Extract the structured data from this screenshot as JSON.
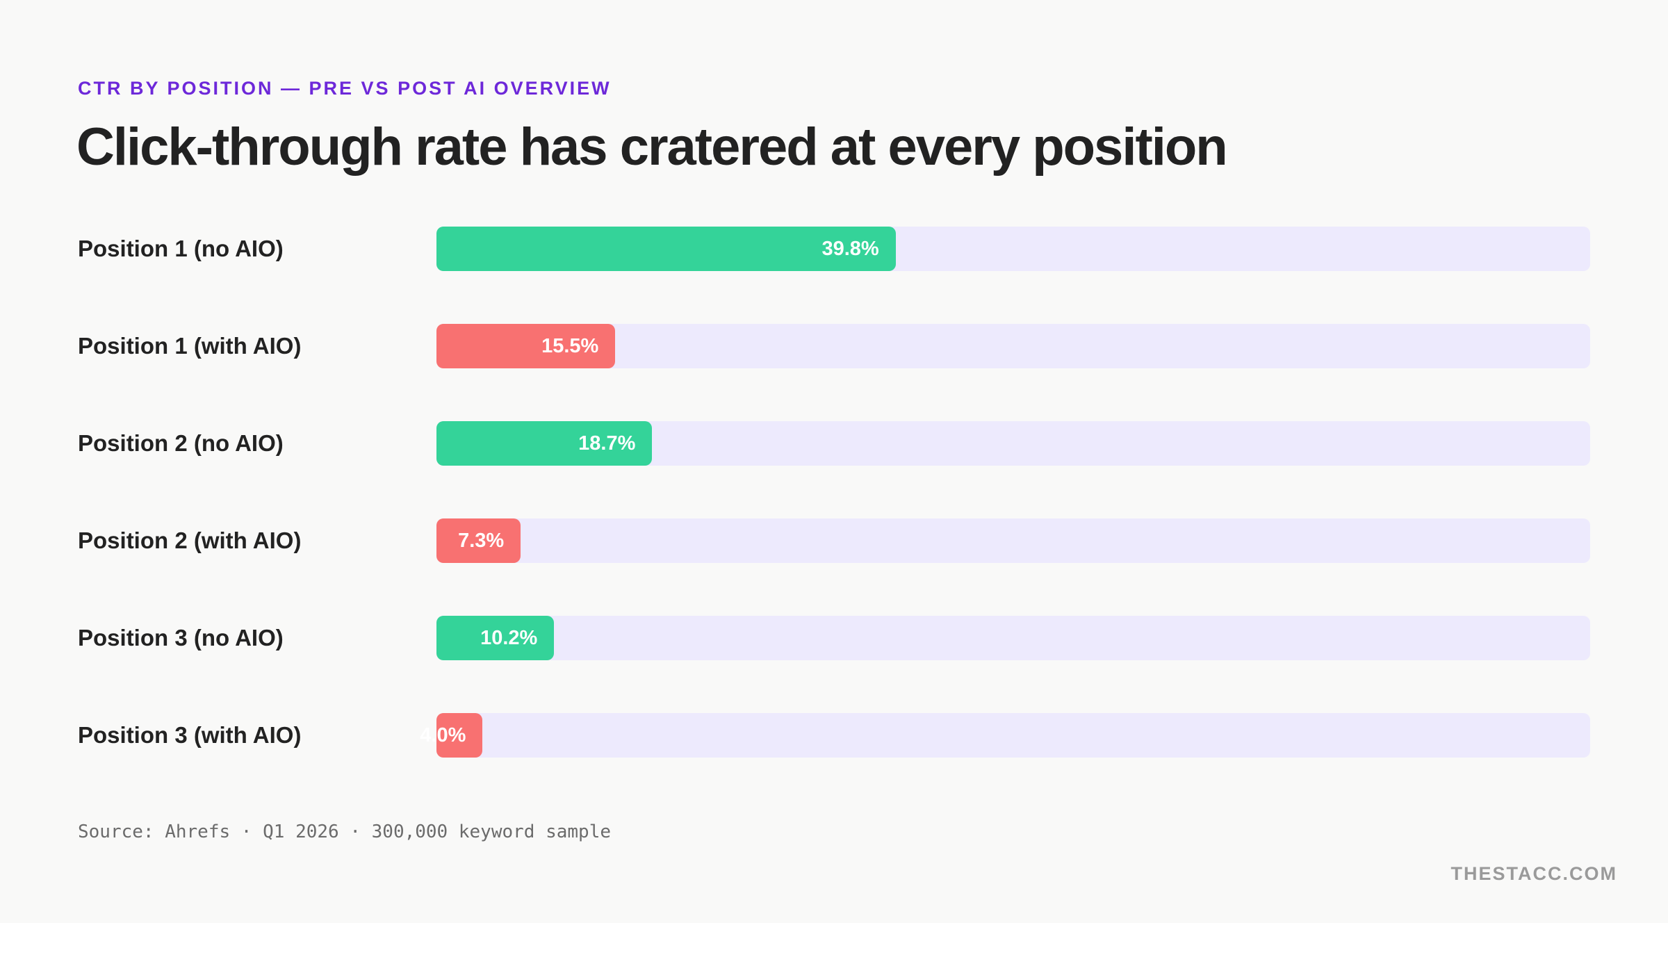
{
  "eyebrow": "CTR BY POSITION — PRE VS POST AI OVERVIEW",
  "title": "Click-through rate has cratered at every position",
  "source": "Source: Ahrefs · Q1 2026 · 300,000 keyword sample",
  "brand": "THESTACC.COM",
  "colors": {
    "no_aio": "#34d399",
    "with_aio": "#f87171",
    "track": "#edeafd",
    "eyebrow": "#6d28d9"
  },
  "chart_data": {
    "type": "bar",
    "orientation": "horizontal",
    "xlim": [
      0,
      100
    ],
    "categories": [
      "Position 1 (no AIO)",
      "Position 1 (with AIO)",
      "Position 2 (no AIO)",
      "Position 2 (with AIO)",
      "Position 3 (no AIO)",
      "Position 3 (with AIO)"
    ],
    "values": [
      39.8,
      15.5,
      18.7,
      7.3,
      10.2,
      4.0
    ],
    "value_labels": [
      "39.8%",
      "15.5%",
      "18.7%",
      "7.3%",
      "10.2%",
      "4.0%"
    ],
    "groups": [
      "no_aio",
      "with_aio",
      "no_aio",
      "with_aio",
      "no_aio",
      "with_aio"
    ]
  }
}
